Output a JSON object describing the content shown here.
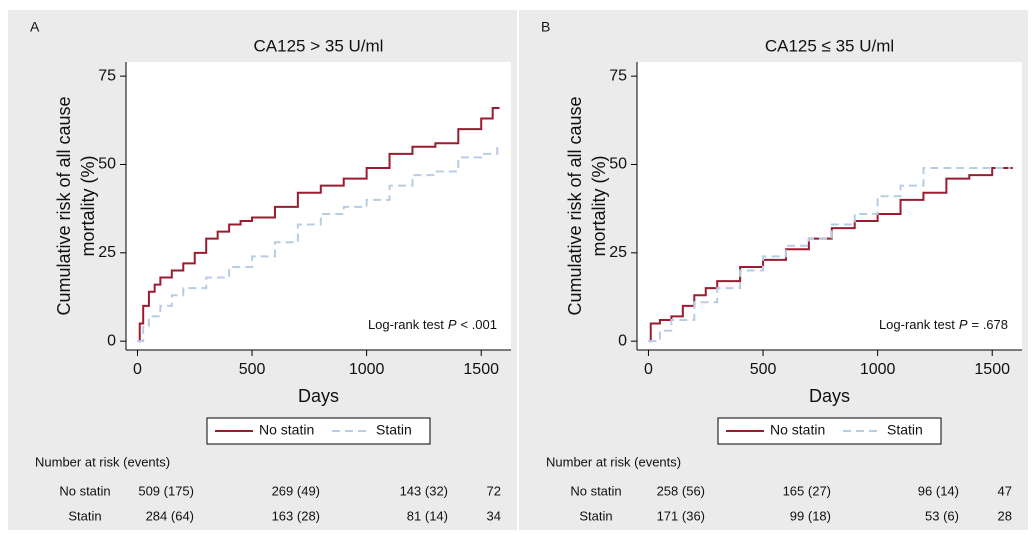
{
  "chart_data": [
    {
      "type": "line",
      "panel": "A",
      "title": "CA125 > 35 U/ml",
      "xlabel": "Days",
      "ylabel": [
        "Cumulative risk of all cause",
        "mortality (%)"
      ],
      "annotation": {
        "text": "Log-rank test",
        "p": "P",
        "value": "< .001"
      },
      "xlim": [
        -50,
        1630
      ],
      "ylim": [
        -2.5,
        79
      ],
      "xticks": [
        0,
        500,
        1000,
        1500
      ],
      "yticks": [
        0,
        25,
        50,
        75
      ],
      "series": [
        {
          "name": "No statin",
          "color": "#9b1b30",
          "dash": "solid",
          "x": [
            0,
            10,
            25,
            50,
            75,
            100,
            150,
            200,
            250,
            300,
            350,
            400,
            450,
            500,
            600,
            700,
            800,
            900,
            1000,
            1100,
            1200,
            1300,
            1400,
            1500,
            1550,
            1580
          ],
          "values": [
            0,
            5,
            10,
            14,
            16,
            18,
            20,
            22,
            25,
            29,
            31,
            33,
            34,
            35,
            38,
            42,
            44,
            46,
            49,
            53,
            55,
            56,
            60,
            63,
            66,
            66
          ]
        },
        {
          "name": "Statin",
          "color": "#b8cce4",
          "dash": "dashed",
          "x": [
            0,
            25,
            50,
            100,
            150,
            200,
            300,
            400,
            500,
            600,
            700,
            800,
            900,
            1000,
            1100,
            1200,
            1300,
            1400,
            1500,
            1570
          ],
          "values": [
            0,
            4,
            7,
            10,
            13,
            15,
            18,
            21,
            24,
            28,
            33,
            36,
            38,
            40,
            44,
            47,
            48,
            52,
            53,
            55
          ]
        }
      ],
      "risk_table": {
        "title": "Number at risk (events)",
        "rows": [
          {
            "name": "No statin",
            "values": [
              "509 (175)",
              "269 (49)",
              "143 (32)",
              "72"
            ]
          },
          {
            "name": "Statin",
            "values": [
              "284 (64)",
              "163 (28)",
              "81 (14)",
              "34"
            ]
          }
        ]
      }
    },
    {
      "type": "line",
      "panel": "B",
      "title": "CA125 ≤ 35 U/ml",
      "xlabel": "Days",
      "ylabel": [
        "Cumulative risk of all cause",
        "mortality (%)"
      ],
      "annotation": {
        "text": "Log-rank test",
        "p": "P",
        "value": "= .678"
      },
      "xlim": [
        -50,
        1630
      ],
      "ylim": [
        -2.5,
        79
      ],
      "xticks": [
        0,
        500,
        1000,
        1500
      ],
      "yticks": [
        0,
        25,
        50,
        75
      ],
      "series": [
        {
          "name": "No statin",
          "color": "#9b1b30",
          "dash": "solid",
          "x": [
            0,
            10,
            50,
            100,
            150,
            200,
            250,
            300,
            400,
            500,
            600,
            700,
            800,
            900,
            1000,
            1100,
            1200,
            1300,
            1400,
            1500,
            1590
          ],
          "values": [
            0,
            5,
            6,
            7,
            10,
            13,
            15,
            17,
            21,
            23,
            26,
            29,
            32,
            34,
            36,
            40,
            42,
            46,
            47,
            49,
            49
          ]
        },
        {
          "name": "Statin",
          "color": "#b8cce4",
          "dash": "dashed",
          "x": [
            0,
            50,
            100,
            200,
            300,
            400,
            500,
            600,
            700,
            800,
            900,
            1000,
            1100,
            1200,
            1580
          ],
          "values": [
            0,
            3,
            6,
            11,
            15,
            20,
            24,
            27,
            29,
            33,
            36,
            41,
            44,
            49,
            49
          ]
        }
      ],
      "risk_table": {
        "title": "Number at risk (events)",
        "rows": [
          {
            "name": "No statin",
            "values": [
              "258 (56)",
              "165 (27)",
              "96 (14)",
              "47"
            ]
          },
          {
            "name": "Statin",
            "values": [
              "171 (36)",
              "99 (18)",
              "53 (6)",
              "28"
            ]
          }
        ]
      }
    }
  ]
}
